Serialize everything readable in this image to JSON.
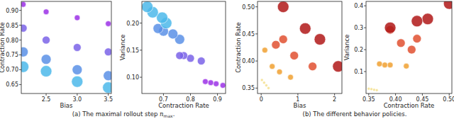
{
  "chart_data": [
    {
      "type": "scatter",
      "x_label": "Bias",
      "y_label": "Contraction Rate",
      "xlim": [
        2.1,
        3.55
      ],
      "ylim": [
        0.62,
        0.93
      ],
      "xticks": [
        2.5,
        {
          "value": 3.0,
          "label": "3.0"
        },
        3.5
      ],
      "yticks": [
        0.65,
        {
          "value": 0.7,
          "label": "0.70"
        },
        0.75,
        {
          "value": 0.8,
          "label": "0.80"
        },
        0.85,
        {
          "value": 0.9,
          "label": "0.90"
        }
      ],
      "series": [
        {
          "color": "#9b30e6",
          "x": [
            2.13,
            2.5,
            3.0,
            3.5
          ],
          "values": [
            0.92,
            0.895,
            0.875,
            0.855
          ],
          "sizes": [
            4,
            4,
            4,
            4
          ]
        },
        {
          "color": "#7a63e8",
          "x": [
            2.13,
            2.5,
            3.0,
            3.5
          ],
          "values": [
            0.84,
            0.8,
            0.775,
            0.76
          ],
          "sizes": [
            5.5,
            5.5,
            5.5,
            5.5
          ]
        },
        {
          "color": "#5a90e6",
          "x": [
            2.13,
            2.5,
            3.0,
            3.5
          ],
          "values": [
            0.76,
            0.735,
            0.7,
            0.68
          ],
          "sizes": [
            7,
            7,
            7,
            7
          ]
        },
        {
          "color": "#4cb8ea",
          "x": [
            2.13,
            2.5,
            3.0,
            3.5
          ],
          "values": [
            0.71,
            0.695,
            0.66,
            0.64
          ],
          "sizes": [
            8,
            8,
            8,
            8
          ]
        }
      ]
    },
    {
      "type": "scatter",
      "x_label": "Contraction Rate",
      "y_label": "Variance",
      "xlim": [
        0.62,
        0.93
      ],
      "ylim": [
        0.07,
        0.24
      ],
      "xticks": [
        0.7,
        0.8,
        0.9
      ],
      "yticks": [
        {
          "value": 0.1,
          "label": "0.10"
        },
        0.15,
        {
          "value": 0.2,
          "label": "0.20"
        }
      ],
      "series": [
        {
          "color": "#9b30e6",
          "x": [
            0.92,
            0.895,
            0.875,
            0.855
          ],
          "values": [
            0.085,
            0.088,
            0.09,
            0.092
          ],
          "sizes": [
            4,
            4,
            4,
            4
          ]
        },
        {
          "color": "#7a63e8",
          "x": [
            0.84,
            0.8,
            0.775,
            0.76
          ],
          "values": [
            0.13,
            0.135,
            0.14,
            0.14
          ],
          "sizes": [
            5.5,
            5.5,
            5.5,
            5.5
          ]
        },
        {
          "color": "#5a90e6",
          "x": [
            0.76,
            0.735,
            0.7,
            0.68
          ],
          "values": [
            0.17,
            0.18,
            0.185,
            0.19
          ],
          "sizes": [
            7,
            7,
            7,
            7
          ]
        },
        {
          "color": "#4cb8ea",
          "x": [
            0.71,
            0.695,
            0.66,
            0.64
          ],
          "values": [
            0.2,
            0.21,
            0.22,
            0.23
          ],
          "sizes": [
            8,
            8,
            8,
            8
          ]
        }
      ]
    },
    {
      "type": "scatter",
      "x_label": "Bias",
      "y_label": "Contraction Rate",
      "xlim": [
        -0.1,
        2.2
      ],
      "ylim": [
        0.34,
        0.51
      ],
      "xticks": [
        0,
        1,
        2
      ],
      "yticks": [
        0.35,
        {
          "value": 0.4,
          "label": "0.40"
        },
        0.45,
        {
          "value": 0.5,
          "label": "0.50"
        }
      ],
      "series": [
        {
          "color": "#f3df8c",
          "x": [
            0.02,
            0.08,
            0.14,
            0.2
          ],
          "values": [
            0.365,
            0.36,
            0.355,
            0.35
          ],
          "sizes": [
            2,
            2,
            2,
            2
          ]
        },
        {
          "color": "#f0a030",
          "x": [
            0.1,
            0.3,
            0.5,
            0.8
          ],
          "values": [
            0.42,
            0.39,
            0.38,
            0.37
          ],
          "sizes": [
            4,
            4,
            4,
            4
          ]
        },
        {
          "color": "#e05030",
          "x": [
            0.4,
            0.6,
            0.9,
            1.4
          ],
          "values": [
            0.43,
            0.44,
            0.41,
            0.39
          ],
          "sizes": [
            6,
            6,
            6,
            6
          ]
        },
        {
          "color": "#b01818",
          "x": [
            0.6,
            1.2,
            1.6,
            2.1
          ],
          "values": [
            0.5,
            0.46,
            0.44,
            0.39
          ],
          "sizes": [
            8,
            8,
            8,
            8
          ]
        }
      ]
    },
    {
      "type": "scatter",
      "x_label": "Contraction Rate",
      "y_label": "Variance",
      "xlim": [
        0.345,
        0.505
      ],
      "ylim": [
        0,
        0.42
      ],
      "xticks": [
        0.35,
        {
          "value": 0.4,
          "label": "0.40"
        },
        0.45,
        {
          "value": 0.5,
          "label": "0.50"
        }
      ],
      "yticks": [
        0.1,
        0.2,
        0.3,
        0.4
      ],
      "series": [
        {
          "color": "#f3df8c",
          "x": [
            0.365,
            0.36,
            0.355,
            0.35
          ],
          "values": [
            0.015,
            0.017,
            0.02,
            0.022
          ],
          "sizes": [
            2,
            2,
            2,
            2
          ]
        },
        {
          "color": "#f0a030",
          "x": [
            0.42,
            0.39,
            0.38,
            0.37
          ],
          "values": [
            0.125,
            0.13,
            0.13,
            0.135
          ],
          "sizes": [
            4,
            4,
            4,
            4
          ]
        },
        {
          "color": "#e05030",
          "x": [
            0.43,
            0.44,
            0.41,
            0.39
          ],
          "values": [
            0.2,
            0.25,
            0.23,
            0.29
          ],
          "sizes": [
            6,
            6,
            6,
            6
          ]
        },
        {
          "color": "#b01818",
          "x": [
            0.5,
            0.46,
            0.44,
            0.39
          ],
          "values": [
            0.41,
            0.34,
            0.33,
            0.3
          ],
          "sizes": [
            8,
            8,
            8,
            8
          ]
        }
      ]
    }
  ],
  "captions": [
    {
      "label": "(a)",
      "text": "The maximal rollout step ",
      "math": "n",
      "sub": "max",
      "end": "."
    },
    {
      "label": "(b)",
      "text": "The different behavior policies.",
      "math": "",
      "sub": "",
      "end": ""
    }
  ]
}
